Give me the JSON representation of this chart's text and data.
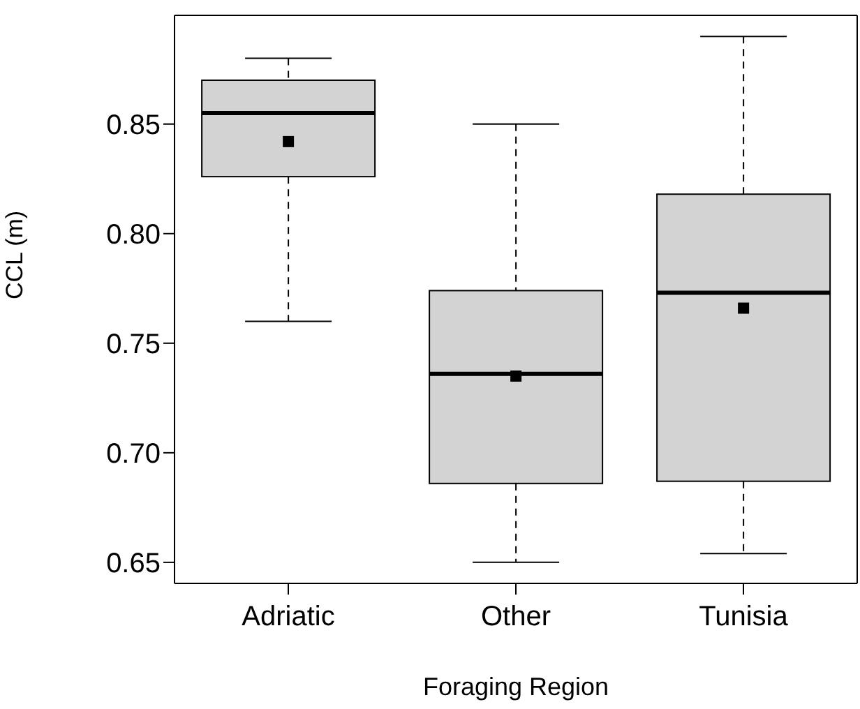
{
  "chart_data": {
    "type": "box",
    "xlabel": "Foraging Region",
    "ylabel": "CCL (m)",
    "categories": [
      "Adriatic",
      "Other",
      "Tunisia"
    ],
    "color": "#d3d3d3",
    "boxes": [
      {
        "low": 0.76,
        "q1": 0.826,
        "median": 0.855,
        "q3": 0.87,
        "high": 0.88,
        "mean": 0.842
      },
      {
        "low": 0.65,
        "q1": 0.686,
        "median": 0.736,
        "q3": 0.774,
        "high": 0.85,
        "mean": 0.735
      },
      {
        "low": 0.654,
        "q1": 0.687,
        "median": 0.773,
        "q3": 0.818,
        "high": 0.89,
        "mean": 0.766
      }
    ],
    "ylim": [
      0.6404,
      0.8996
    ],
    "yticks": [
      0.65,
      {
        "value": 0.7,
        "label": "0.70"
      },
      0.75,
      {
        "value": 0.8,
        "label": "0.80"
      },
      0.85
    ]
  }
}
